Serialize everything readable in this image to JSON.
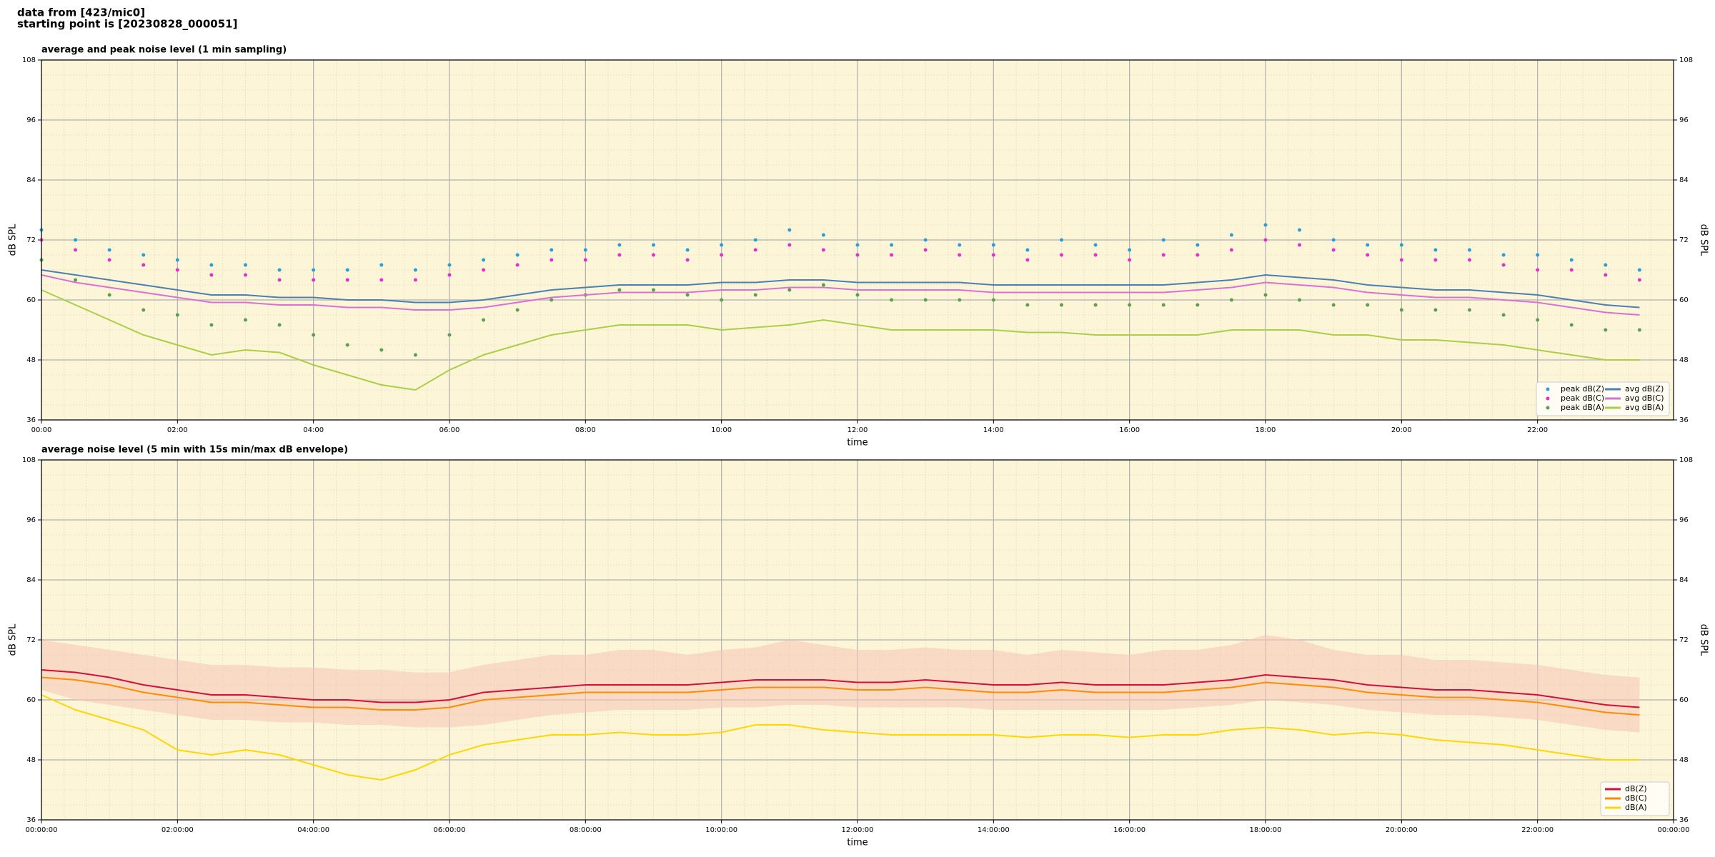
{
  "header": {
    "line1": "data from [423/mic0]",
    "line2": "starting point is [20230828_000051]"
  },
  "chart_data": [
    {
      "type": "line",
      "title": "average and peak noise level (1 min sampling)",
      "xlabel": "time",
      "ylabel": "dB SPL",
      "xlim": [
        0,
        24
      ],
      "ylim": [
        36,
        108
      ],
      "yticks": [
        36,
        48,
        60,
        72,
        84,
        96,
        108
      ],
      "grid": true,
      "legend": "lower right",
      "legend_columns": 2,
      "xticks": [
        {
          "value": 0,
          "label": "00:00"
        },
        {
          "value": 2,
          "label": "02:00"
        },
        {
          "value": 4,
          "label": "04:00"
        },
        {
          "value": 6,
          "label": "06:00"
        },
        {
          "value": 8,
          "label": "08:00"
        },
        {
          "value": 10,
          "label": "10:00"
        },
        {
          "value": 12,
          "label": "12:00"
        },
        {
          "value": 14,
          "label": "14:00"
        },
        {
          "value": 16,
          "label": "16:00"
        },
        {
          "value": 18,
          "label": "18:00"
        },
        {
          "value": 20,
          "label": "20:00"
        },
        {
          "value": 22,
          "label": "22:00"
        }
      ],
      "x": [
        0,
        0.5,
        1,
        1.5,
        2,
        2.5,
        3,
        3.5,
        4,
        4.5,
        5,
        5.5,
        6,
        6.5,
        7,
        7.5,
        8,
        8.5,
        9,
        9.5,
        10,
        10.5,
        11,
        11.5,
        12,
        12.5,
        13,
        13.5,
        14,
        14.5,
        15,
        15.5,
        16,
        16.5,
        17,
        17.5,
        18,
        18.5,
        19,
        19.5,
        20,
        20.5,
        21,
        21.5,
        22,
        22.5,
        23,
        23.5
      ],
      "series": [
        {
          "name": "peak dB(Z)",
          "kind": "scatter",
          "color": "#2a9fd6",
          "values": [
            74,
            72,
            70,
            69,
            68,
            67,
            67,
            66,
            66,
            66,
            67,
            66,
            67,
            68,
            69,
            70,
            70,
            71,
            71,
            70,
            71,
            72,
            74,
            73,
            71,
            71,
            72,
            71,
            71,
            70,
            72,
            71,
            70,
            72,
            71,
            73,
            75,
            74,
            72,
            71,
            71,
            70,
            70,
            69,
            69,
            68,
            67,
            66
          ]
        },
        {
          "name": "peak dB(C)",
          "kind": "scatter",
          "color": "#e030d0",
          "values": [
            72,
            70,
            68,
            67,
            66,
            65,
            65,
            64,
            64,
            64,
            64,
            64,
            65,
            66,
            67,
            68,
            68,
            69,
            69,
            68,
            69,
            70,
            71,
            70,
            69,
            69,
            70,
            69,
            69,
            68,
            69,
            69,
            68,
            69,
            69,
            70,
            72,
            71,
            70,
            69,
            68,
            68,
            68,
            67,
            66,
            66,
            65,
            64
          ]
        },
        {
          "name": "peak dB(A)",
          "kind": "scatter",
          "color": "#5aa050",
          "values": [
            68,
            64,
            61,
            58,
            57,
            55,
            56,
            55,
            53,
            51,
            50,
            49,
            53,
            56,
            58,
            60,
            61,
            62,
            62,
            61,
            60,
            61,
            62,
            63,
            61,
            60,
            60,
            60,
            60,
            59,
            59,
            59,
            59,
            59,
            59,
            60,
            61,
            60,
            59,
            59,
            58,
            58,
            58,
            57,
            56,
            55,
            54,
            54
          ]
        },
        {
          "name": "avg dB(Z)",
          "kind": "line",
          "color": "#4a7fb5",
          "values": [
            66,
            65,
            64,
            63,
            62,
            61,
            61,
            60.5,
            60.5,
            60,
            60,
            59.5,
            59.5,
            60,
            61,
            62,
            62.5,
            63,
            63,
            63,
            63.5,
            63.5,
            64,
            64,
            63.5,
            63.5,
            63.5,
            63.5,
            63,
            63,
            63,
            63,
            63,
            63,
            63.5,
            64,
            65,
            64.5,
            64,
            63,
            62.5,
            62,
            62,
            61.5,
            61,
            60,
            59,
            58.5
          ]
        },
        {
          "name": "avg dB(C)",
          "kind": "line",
          "color": "#da70d6",
          "values": [
            65,
            63.5,
            62.5,
            61.5,
            60.5,
            59.5,
            59.5,
            59,
            59,
            58.5,
            58.5,
            58,
            58,
            58.5,
            59.5,
            60.5,
            61,
            61.5,
            61.5,
            61.5,
            62,
            62,
            62.5,
            62.5,
            62,
            62,
            62,
            62,
            61.5,
            61.5,
            61.5,
            61.5,
            61.5,
            61.5,
            62,
            62.5,
            63.5,
            63,
            62.5,
            61.5,
            61,
            60.5,
            60.5,
            60,
            59.5,
            58.5,
            57.5,
            57
          ]
        },
        {
          "name": "avg dB(A)",
          "kind": "line",
          "color": "#a8cf45",
          "values": [
            62,
            59,
            56,
            53,
            51,
            49,
            50,
            49.5,
            47,
            45,
            43,
            42,
            46,
            49,
            51,
            53,
            54,
            55,
            55,
            55,
            54,
            54.5,
            55,
            56,
            55,
            54,
            54,
            54,
            54,
            53.5,
            53.5,
            53,
            53,
            53,
            53,
            54,
            54,
            54,
            53,
            53,
            52,
            52,
            51.5,
            51,
            50,
            49,
            48,
            48
          ]
        }
      ]
    },
    {
      "type": "line",
      "title": "average noise level (5 min with 15s min/max dB envelope)",
      "xlabel": "time",
      "ylabel": "dB SPL",
      "xlim": [
        0,
        24
      ],
      "ylim": [
        36,
        108
      ],
      "yticks": [
        36,
        48,
        60,
        72,
        84,
        96,
        108
      ],
      "grid": true,
      "legend": "lower right",
      "legend_columns": 1,
      "xticks": [
        {
          "value": 0,
          "label": "00:00:00"
        },
        {
          "value": 2,
          "label": "02:00:00"
        },
        {
          "value": 4,
          "label": "04:00:00"
        },
        {
          "value": 6,
          "label": "06:00:00"
        },
        {
          "value": 8,
          "label": "08:00:00"
        },
        {
          "value": 10,
          "label": "10:00:00"
        },
        {
          "value": 12,
          "label": "12:00:00"
        },
        {
          "value": 14,
          "label": "14:00:00"
        },
        {
          "value": 16,
          "label": "16:00:00"
        },
        {
          "value": 18,
          "label": "18:00:00"
        },
        {
          "value": 20,
          "label": "20:00:00"
        },
        {
          "value": 22,
          "label": "22:00:00"
        },
        {
          "value": 24,
          "label": "00:00:00"
        }
      ],
      "x": [
        0,
        0.5,
        1,
        1.5,
        2,
        2.5,
        3,
        3.5,
        4,
        4.5,
        5,
        5.5,
        6,
        6.5,
        7,
        7.5,
        8,
        8.5,
        9,
        9.5,
        10,
        10.5,
        11,
        11.5,
        12,
        12.5,
        13,
        13.5,
        14,
        14.5,
        15,
        15.5,
        16,
        16.5,
        17,
        17.5,
        18,
        18.5,
        19,
        19.5,
        20,
        20.5,
        21,
        21.5,
        22,
        22.5,
        23,
        23.5
      ],
      "envelope": {
        "color": "#f6c8b8",
        "low": [
          62,
          60,
          59,
          58,
          57,
          56,
          56,
          55.5,
          55.5,
          55,
          55,
          54.5,
          54.5,
          55,
          56,
          57,
          57.5,
          58,
          58,
          58,
          58.5,
          58.5,
          59,
          59,
          58.5,
          58.5,
          58.5,
          58.5,
          58,
          58,
          58,
          58,
          58,
          58,
          58.5,
          59,
          60,
          59.5,
          59,
          58,
          57.5,
          57,
          57,
          56.5,
          56,
          55,
          54,
          53.5
        ],
        "high": [
          72,
          71,
          70,
          69,
          68,
          67,
          67,
          66.5,
          66.5,
          66,
          66,
          65.5,
          65.5,
          67,
          68,
          69,
          69,
          70,
          70,
          69,
          70,
          70.5,
          72,
          71,
          70,
          70,
          70.5,
          70,
          70,
          69,
          70,
          69.5,
          69,
          70,
          70,
          71,
          73,
          72,
          70,
          69,
          69,
          68,
          68,
          67.5,
          67,
          66,
          65,
          64.5
        ]
      },
      "series": [
        {
          "name": "dB(Z)",
          "kind": "line",
          "color": "#d0103a",
          "values": [
            66,
            65.5,
            64.5,
            63,
            62,
            61,
            61,
            60.5,
            60,
            60,
            59.5,
            59.5,
            60,
            61.5,
            62,
            62.5,
            63,
            63,
            63,
            63,
            63.5,
            64,
            64,
            64,
            63.5,
            63.5,
            64,
            63.5,
            63,
            63,
            63.5,
            63,
            63,
            63,
            63.5,
            64,
            65,
            64.5,
            64,
            63,
            62.5,
            62,
            62,
            61.5,
            61,
            60,
            59,
            58.5
          ]
        },
        {
          "name": "dB(C)",
          "kind": "line",
          "color": "#ff8c00",
          "values": [
            64.5,
            64,
            63,
            61.5,
            60.5,
            59.5,
            59.5,
            59,
            58.5,
            58.5,
            58,
            58,
            58.5,
            60,
            60.5,
            61,
            61.5,
            61.5,
            61.5,
            61.5,
            62,
            62.5,
            62.5,
            62.5,
            62,
            62,
            62.5,
            62,
            61.5,
            61.5,
            62,
            61.5,
            61.5,
            61.5,
            62,
            62.5,
            63.5,
            63,
            62.5,
            61.5,
            61,
            60.5,
            60.5,
            60,
            59.5,
            58.5,
            57.5,
            57
          ]
        },
        {
          "name": "dB(A)",
          "kind": "line",
          "color": "#ffd700",
          "values": [
            61,
            58,
            56,
            54,
            50,
            49,
            50,
            49,
            47,
            45,
            44,
            46,
            49,
            51,
            52,
            53,
            53,
            53.5,
            53,
            53,
            53.5,
            55,
            55,
            54,
            53.5,
            53,
            53,
            53,
            53,
            52.5,
            53,
            53,
            52.5,
            53,
            53,
            54,
            54.5,
            54,
            53,
            53.5,
            53,
            52,
            51.5,
            51,
            50,
            49,
            48,
            48
          ]
        }
      ]
    }
  ]
}
